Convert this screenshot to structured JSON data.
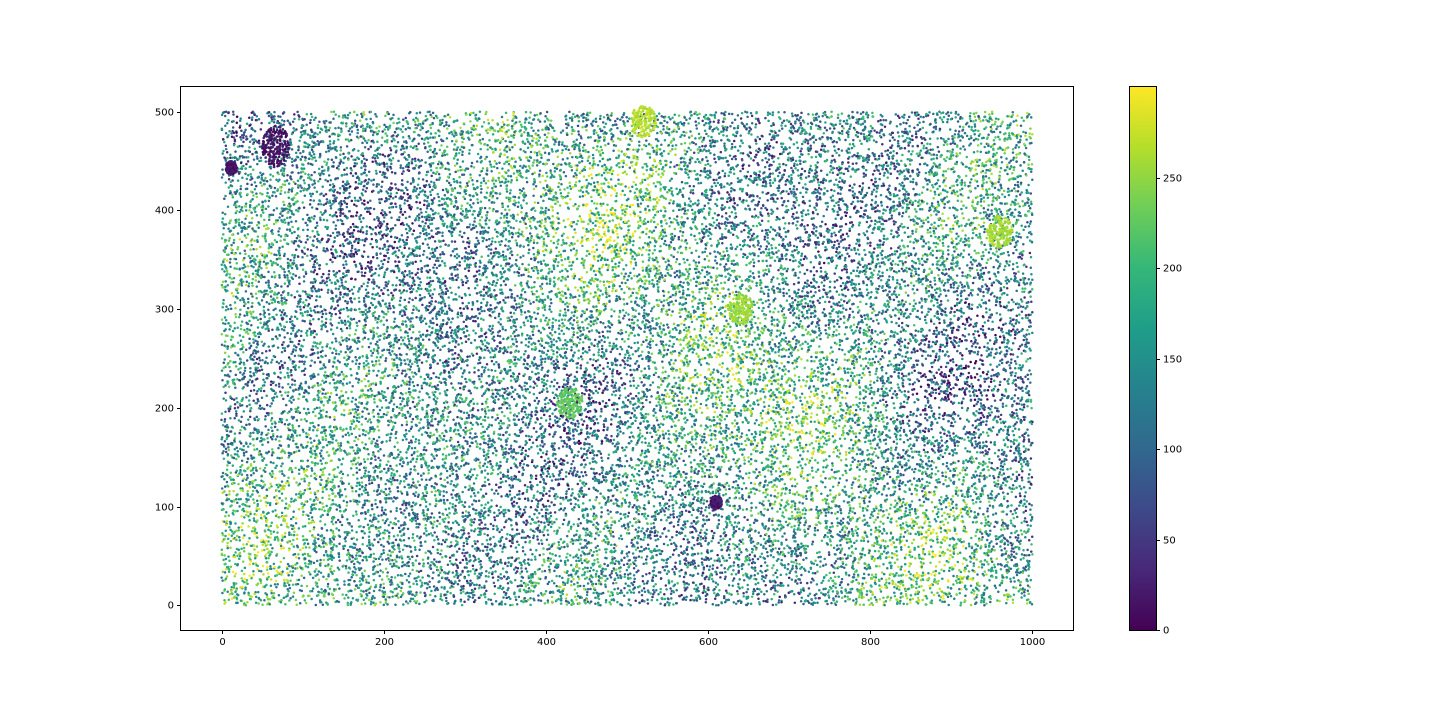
{
  "chart_data": {
    "type": "scatter",
    "title": "",
    "xlabel": "",
    "ylabel": "",
    "xlim": [
      -50,
      1050
    ],
    "ylim": [
      -25,
      525
    ],
    "x_range": [
      0,
      1000
    ],
    "y_range": [
      0,
      500
    ],
    "xticks": [
      0,
      200,
      400,
      600,
      800,
      1000
    ],
    "yticks": [
      0,
      100,
      200,
      300,
      400,
      500
    ],
    "grid": false,
    "marker": "dot",
    "colormap": "viridis",
    "color_range": [
      0,
      300
    ],
    "colorbar": {
      "ticks": [
        0,
        50,
        100,
        150,
        200,
        250
      ],
      "placement": "right"
    },
    "colormap_stops": [
      "#440154",
      "#482878",
      "#3e4989",
      "#31688e",
      "#26828e",
      "#1f9e89",
      "#35b779",
      "#6ece58",
      "#b5de2b",
      "#fde725"
    ],
    "features": [
      {
        "type": "cluster",
        "x": 67,
        "y": 465,
        "value": 15
      },
      {
        "type": "cluster",
        "x": 12,
        "y": 443,
        "value": 20
      },
      {
        "type": "cluster",
        "x": 610,
        "y": 104,
        "value": 20
      },
      {
        "type": "cluster",
        "x": 960,
        "y": 378,
        "value": 260
      },
      {
        "type": "cluster",
        "x": 520,
        "y": 490,
        "value": 270
      },
      {
        "type": "cluster",
        "x": 640,
        "y": 300,
        "value": 255
      },
      {
        "type": "cluster",
        "x": 430,
        "y": 205,
        "value": 225
      }
    ]
  }
}
